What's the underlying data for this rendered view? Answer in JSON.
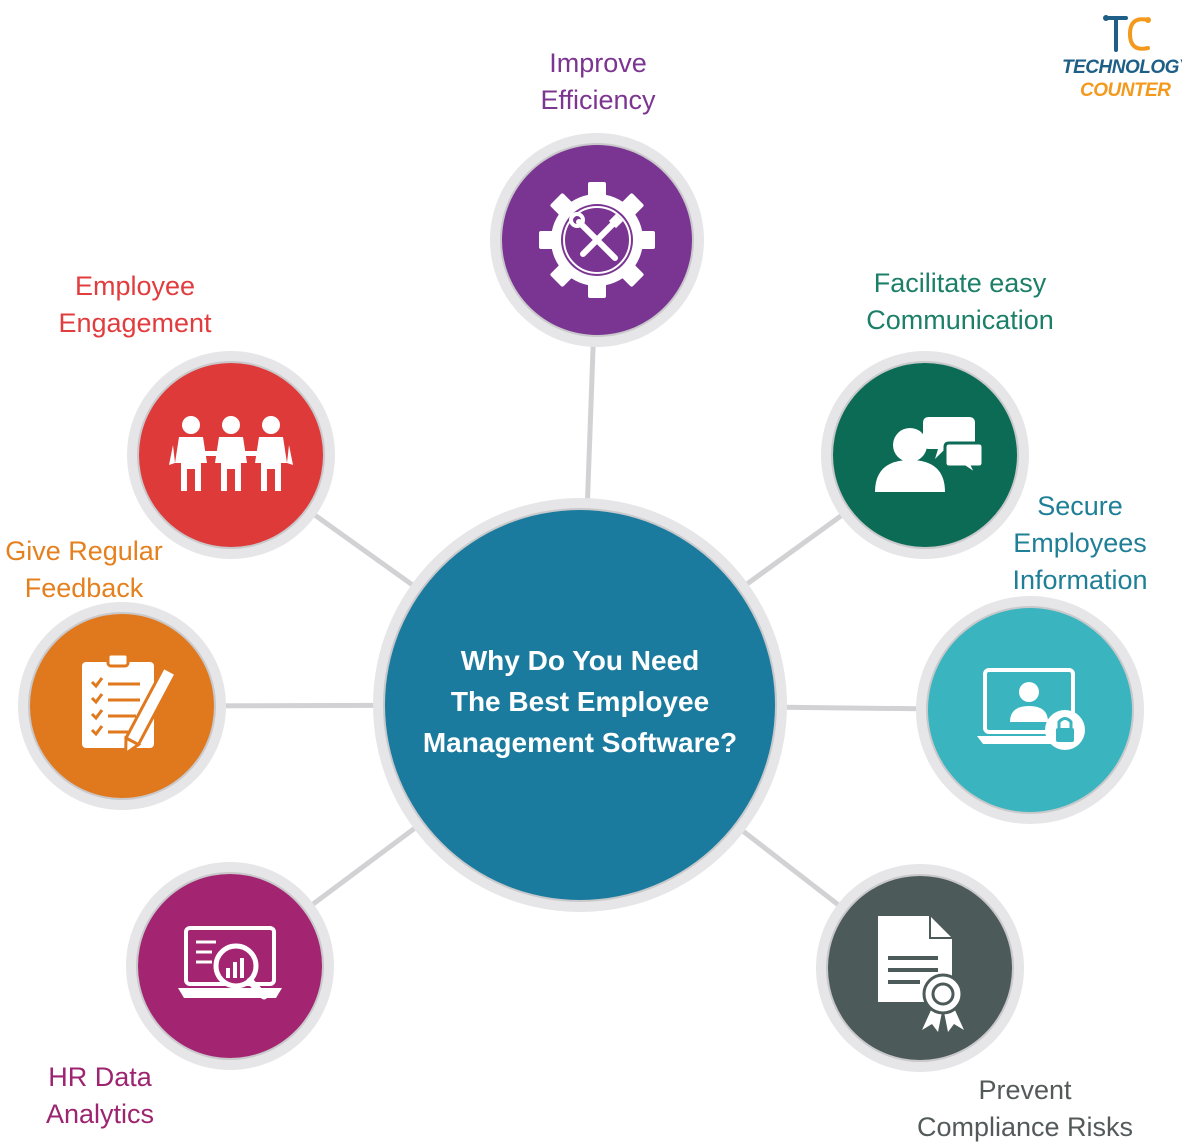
{
  "center": {
    "line1": "Why Do You Need",
    "line2": "The Best Employee",
    "line3": "Management Software?",
    "color": "#1b7b9e"
  },
  "nodes": [
    {
      "id": "improve-efficiency",
      "lines": [
        "Improve",
        "Efficiency"
      ],
      "color": "#7a3592",
      "text_color": "#7c3591",
      "icon": "gear-tools-icon"
    },
    {
      "id": "facilitate-communication",
      "lines": [
        "Facilitate easy",
        "Communication"
      ],
      "color": "#0b6b55",
      "text_color": "#1c7f68",
      "icon": "chat-person-icon"
    },
    {
      "id": "secure-information",
      "lines": [
        "Secure",
        "Employees",
        "Information"
      ],
      "color": "#3ab4bf",
      "text_color": "#1f7f97",
      "icon": "laptop-lock-icon"
    },
    {
      "id": "prevent-compliance",
      "lines": [
        "Prevent",
        "Compliance Risks"
      ],
      "color": "#4c5a59",
      "text_color": "#545a5a",
      "icon": "certificate-icon"
    },
    {
      "id": "hr-data-analytics",
      "lines": [
        "HR Data",
        "Analytics"
      ],
      "color": "#a32572",
      "text_color": "#9c2470",
      "icon": "laptop-analytics-icon"
    },
    {
      "id": "give-feedback",
      "lines": [
        "Give Regular",
        "Feedback"
      ],
      "color": "#e0781d",
      "text_color": "#e5801f",
      "icon": "clipboard-checklist-icon"
    },
    {
      "id": "employee-engagement",
      "lines": [
        "Employee",
        "Engagement"
      ],
      "color": "#de3a3a",
      "text_color": "#e13c3e",
      "icon": "team-people-icon"
    }
  ],
  "logo": {
    "word1": "TECHNOLOGY",
    "word2": "COUNTER",
    "color_primary": "#1d5f86",
    "color_accent": "#f39a1e"
  },
  "connector_color": "#d2d2d4",
  "ring_color": "#e6e6e8"
}
